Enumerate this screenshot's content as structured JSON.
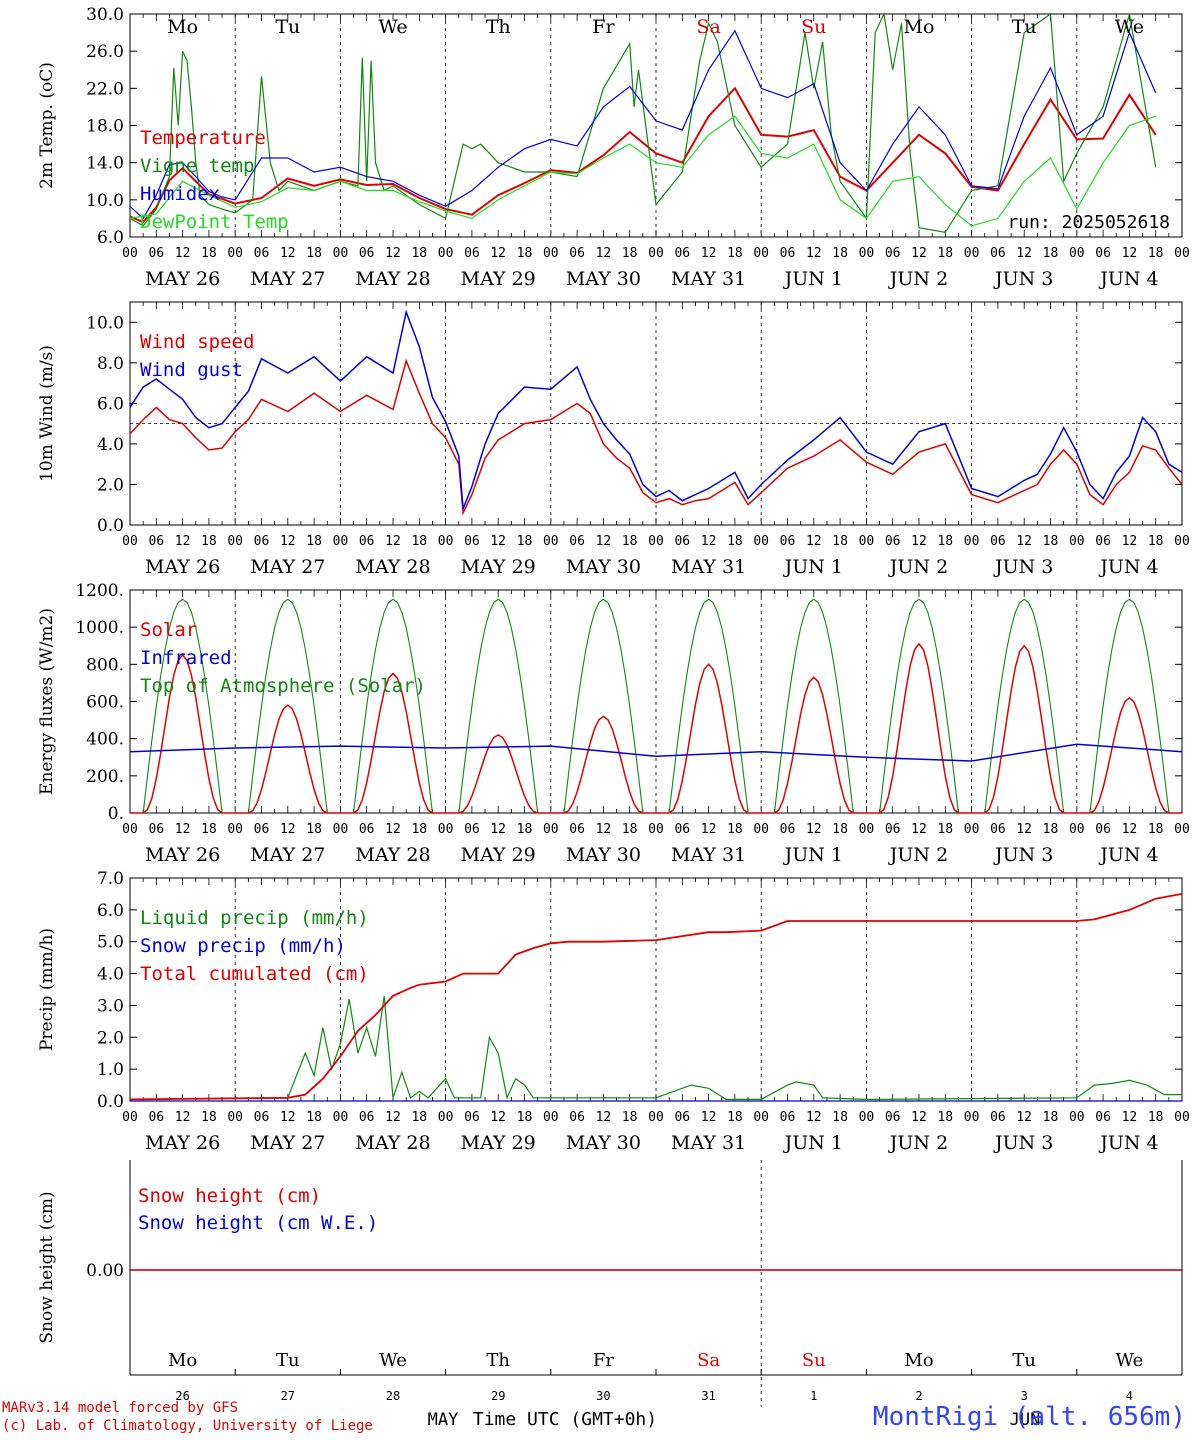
{
  "day_names": [
    "Mo",
    "Tu",
    "We",
    "Th",
    "Fr",
    "Sa",
    "Su",
    "Mo",
    "Tu",
    "We"
  ],
  "weekend_days": [
    "Sa",
    "Su"
  ],
  "date_labels": [
    "MAY 26",
    "MAY 27",
    "MAY 28",
    "MAY 29",
    "MAY 30",
    "MAY 31",
    "JUN  1",
    "JUN  2",
    "JUN  3",
    "JUN  4"
  ],
  "hour_ticks": [
    "00",
    "06",
    "12",
    "18"
  ],
  "day_numbers": [
    "26",
    "27",
    "28",
    "29",
    "30",
    "31",
    "1",
    "2",
    "3",
    "4"
  ],
  "month_labels": [
    "MAY",
    "JUN"
  ],
  "xlabel": "Time UTC (GMT+0h)",
  "run_label": "run: 2025052618",
  "footer": {
    "line1": "MARv3.14 model forced by GFS",
    "line2": "(c) Lab. of Climatology, University of Liege",
    "station": "MontRigi (alt. 656m)"
  },
  "colors": {
    "red": "#e00000",
    "green": "#118811",
    "light_green": "#22dd22",
    "blue": "#0000dd"
  },
  "chart_data": [
    {
      "type": "line",
      "ylabel": "2m Temp. (oC)",
      "ylim": [
        6,
        30
      ],
      "yticks": [
        "6.0",
        "10.0",
        "14.0",
        "18.0",
        "22.0",
        "26.0",
        "30.0"
      ],
      "x_unit": "hours since MAY 26 00 UTC",
      "series": [
        {
          "name": "Temperature",
          "color": "red",
          "x": [
            0,
            3,
            6,
            9,
            12,
            15,
            18,
            21,
            24,
            30,
            36,
            42,
            48,
            54,
            60,
            66,
            72,
            78,
            84,
            90,
            96,
            102,
            108,
            114,
            120,
            126,
            132,
            138,
            144,
            150,
            156,
            162,
            168,
            174,
            180,
            186,
            192,
            198,
            204,
            210,
            216,
            222,
            228,
            234
          ],
          "y": [
            8.2,
            7.6,
            9.2,
            12.1,
            13.4,
            12.0,
            10.6,
            10.1,
            9.6,
            10.2,
            12.3,
            11.5,
            12.2,
            11.6,
            11.7,
            10.2,
            9.0,
            8.4,
            10.5,
            11.8,
            13.2,
            12.9,
            14.8,
            17.3,
            15.0,
            14.0,
            19.0,
            22.0,
            17.0,
            16.8,
            17.5,
            12.5,
            11.0,
            14.0,
            17.0,
            15.0,
            11.4,
            11.0,
            16.0,
            20.8,
            16.5,
            16.6,
            21.3,
            17.0
          ]
        },
        {
          "name": "Vigne temp",
          "color": "green",
          "x": [
            0,
            3,
            6,
            9,
            10,
            11,
            12,
            13,
            14,
            15,
            16,
            18,
            21,
            24,
            28,
            30,
            32,
            34,
            36,
            42,
            48,
            52,
            53,
            54,
            55,
            56,
            58,
            60,
            66,
            72,
            76,
            78,
            80,
            84,
            90,
            96,
            102,
            108,
            114,
            115,
            116,
            120,
            126,
            130,
            132,
            134,
            138,
            144,
            150,
            154,
            156,
            158,
            160,
            162,
            168,
            170,
            172,
            174,
            176,
            178,
            180,
            186,
            192,
            198,
            204,
            210,
            213,
            216,
            222,
            228,
            234
          ],
          "y": [
            8.0,
            7.2,
            9.0,
            12.5,
            24.2,
            18.0,
            26.0,
            25.0,
            20.0,
            14.0,
            10.5,
            9.5,
            9.0,
            8.6,
            10.0,
            23.3,
            14.0,
            11.0,
            12.0,
            11.0,
            12.0,
            11.5,
            25.3,
            12.0,
            25.0,
            14.0,
            11.0,
            11.5,
            9.5,
            8.0,
            16.0,
            15.5,
            16.0,
            14.0,
            13.0,
            13.0,
            12.5,
            22.0,
            26.8,
            20.0,
            24.0,
            9.5,
            13.0,
            25.0,
            29.0,
            27.0,
            18.0,
            13.5,
            16.0,
            28.0,
            22.0,
            27.0,
            17.0,
            12.0,
            8.0,
            28.0,
            30.0,
            24.0,
            29.0,
            15.0,
            7.0,
            6.5,
            11.0,
            11.5,
            28.0,
            30.0,
            12.0,
            15.0,
            20.0,
            30.0,
            13.5
          ]
        },
        {
          "name": "Humidex",
          "color": "blue",
          "x": [
            0,
            3,
            6,
            9,
            12,
            15,
            18,
            21,
            24,
            30,
            36,
            42,
            48,
            54,
            60,
            66,
            72,
            78,
            84,
            90,
            96,
            102,
            108,
            114,
            120,
            126,
            132,
            138,
            144,
            150,
            156,
            162,
            168,
            174,
            180,
            186,
            192,
            198,
            204,
            210,
            216,
            222,
            228,
            234
          ],
          "y": [
            9.3,
            8.0,
            10.5,
            13.8,
            14.0,
            12.5,
            10.9,
            10.3,
            10.0,
            14.5,
            14.5,
            13.0,
            13.5,
            12.5,
            12.0,
            10.5,
            9.3,
            11.0,
            13.5,
            15.5,
            16.5,
            15.8,
            20.0,
            22.2,
            18.5,
            17.5,
            24.0,
            28.2,
            22.0,
            21.0,
            22.5,
            14.0,
            11.0,
            16.0,
            20.0,
            17.0,
            11.5,
            11.2,
            19.0,
            24.2,
            17.0,
            19.0,
            28.0,
            21.5
          ]
        },
        {
          "name": "DewPoint Temp",
          "color": "light_green",
          "x": [
            0,
            6,
            12,
            18,
            24,
            30,
            36,
            42,
            48,
            54,
            60,
            66,
            72,
            78,
            84,
            90,
            96,
            102,
            108,
            114,
            120,
            126,
            132,
            138,
            144,
            150,
            156,
            162,
            168,
            174,
            180,
            186,
            192,
            198,
            204,
            210,
            216,
            222,
            228,
            234
          ],
          "y": [
            8.0,
            8.5,
            12.0,
            10.5,
            9.2,
            9.8,
            11.3,
            11.0,
            12.0,
            11.0,
            11.0,
            9.8,
            8.8,
            8.0,
            10.0,
            11.5,
            13.0,
            12.8,
            14.5,
            16.0,
            14.0,
            13.5,
            17.0,
            19.0,
            15.0,
            14.5,
            16.0,
            10.0,
            8.0,
            12.0,
            12.5,
            9.5,
            7.2,
            8.0,
            12.0,
            14.5,
            9.0,
            14.0,
            18.0,
            19.0
          ]
        }
      ]
    },
    {
      "type": "line",
      "ylabel": "10m Wind (m/s)",
      "ylim": [
        0,
        11
      ],
      "yticks": [
        "0.0",
        "2.0",
        "4.0",
        "6.0",
        "8.0",
        "10.0"
      ],
      "reference_line": 5.0,
      "series": [
        {
          "name": "Wind speed",
          "color": "red",
          "x": [
            0,
            3,
            6,
            9,
            12,
            15,
            18,
            21,
            24,
            27,
            30,
            36,
            42,
            48,
            54,
            60,
            63,
            66,
            69,
            72,
            75,
            76,
            78,
            81,
            84,
            90,
            96,
            102,
            105,
            108,
            111,
            114,
            117,
            120,
            123,
            126,
            129,
            132,
            135,
            138,
            141,
            144,
            150,
            156,
            162,
            168,
            174,
            180,
            186,
            192,
            198,
            204,
            207,
            210,
            213,
            216,
            219,
            222,
            225,
            228,
            231,
            234,
            237,
            240
          ],
          "y": [
            4.5,
            5.2,
            5.8,
            5.2,
            5.0,
            4.3,
            3.7,
            3.8,
            4.6,
            5.2,
            6.2,
            5.6,
            6.5,
            5.6,
            6.4,
            5.7,
            8.1,
            6.5,
            5.0,
            4.3,
            3.0,
            0.6,
            1.5,
            3.3,
            4.2,
            5.0,
            5.2,
            6.0,
            5.5,
            4.0,
            3.3,
            2.8,
            1.6,
            1.1,
            1.3,
            1.0,
            1.2,
            1.3,
            1.7,
            2.1,
            1.0,
            1.6,
            2.8,
            3.4,
            4.2,
            3.1,
            2.5,
            3.6,
            4.0,
            1.5,
            1.1,
            1.7,
            2.0,
            3.0,
            3.7,
            3.0,
            1.5,
            1.0,
            2.0,
            2.6,
            3.9,
            3.7,
            2.8,
            2.0
          ]
        },
        {
          "name": "Wind gust",
          "color": "blue",
          "x": [
            0,
            3,
            6,
            9,
            12,
            15,
            18,
            21,
            24,
            27,
            30,
            36,
            42,
            48,
            54,
            60,
            63,
            66,
            69,
            72,
            75,
            76,
            78,
            81,
            84,
            90,
            96,
            102,
            105,
            108,
            111,
            114,
            117,
            120,
            123,
            126,
            129,
            132,
            135,
            138,
            141,
            144,
            150,
            156,
            162,
            168,
            174,
            180,
            186,
            192,
            198,
            204,
            207,
            210,
            213,
            216,
            219,
            222,
            225,
            228,
            231,
            234,
            237,
            240
          ],
          "y": [
            5.8,
            6.8,
            7.2,
            6.7,
            6.2,
            5.3,
            4.8,
            5.0,
            5.8,
            6.6,
            8.2,
            7.5,
            8.3,
            7.1,
            8.3,
            7.5,
            10.5,
            8.8,
            6.3,
            5.1,
            3.4,
            0.8,
            1.9,
            4.0,
            5.5,
            6.8,
            6.7,
            7.8,
            6.2,
            5.0,
            4.2,
            3.5,
            2.0,
            1.4,
            1.7,
            1.2,
            1.5,
            1.8,
            2.2,
            2.6,
            1.3,
            2.0,
            3.2,
            4.2,
            5.3,
            3.6,
            3.0,
            4.6,
            5.0,
            1.8,
            1.4,
            2.2,
            2.5,
            3.5,
            4.8,
            3.6,
            2.0,
            1.3,
            2.6,
            3.4,
            5.3,
            4.6,
            3.0,
            2.6
          ]
        }
      ]
    },
    {
      "type": "line",
      "ylabel": "Energy fluxes (W/m2)",
      "ylim": [
        0,
        1200
      ],
      "yticks": [
        "0.",
        "200.",
        "400.",
        "600.",
        "800.",
        "1000.",
        "1200."
      ],
      "series": [
        {
          "name": "Solar",
          "color": "red",
          "day_peaks": [
            850,
            580,
            750,
            420,
            520,
            800,
            730,
            910,
            900,
            620
          ]
        },
        {
          "name": "Infrared",
          "color": "blue",
          "x": [
            0,
            24,
            48,
            72,
            96,
            120,
            144,
            168,
            192,
            216,
            240
          ],
          "y": [
            330,
            350,
            360,
            350,
            360,
            305,
            330,
            300,
            280,
            370,
            330
          ]
        },
        {
          "name": "Top of Atmosphere (Solar)",
          "color": "green",
          "day_peaks": [
            1150,
            1150,
            1150,
            1150,
            1150,
            1150,
            1150,
            1150,
            1150,
            1150
          ]
        }
      ]
    },
    {
      "type": "line",
      "ylabel": "Precip (mm/h)",
      "ylim": [
        0,
        7
      ],
      "yticks": [
        "0.0",
        "1.0",
        "2.0",
        "3.0",
        "4.0",
        "5.0",
        "6.0",
        "7.0"
      ],
      "series": [
        {
          "name": "Liquid precip (mm/h)",
          "color": "green",
          "x": [
            0,
            36,
            40,
            42,
            44,
            46,
            48,
            50,
            52,
            54,
            56,
            58,
            60,
            62,
            64,
            66,
            68,
            72,
            74,
            76,
            78,
            80,
            82,
            84,
            86,
            88,
            90,
            92,
            94,
            96,
            120,
            128,
            132,
            136,
            144,
            150,
            152,
            156,
            158,
            168,
            216,
            220,
            224,
            228,
            232,
            236,
            240
          ],
          "y": [
            0.05,
            0.1,
            1.5,
            0.8,
            2.3,
            1.0,
            1.8,
            3.2,
            1.5,
            2.3,
            1.4,
            3.3,
            0.1,
            0.9,
            0.1,
            0.3,
            0.1,
            0.7,
            0.1,
            0.1,
            0.1,
            0.1,
            2.0,
            1.5,
            0.1,
            0.7,
            0.5,
            0.1,
            0.1,
            0.1,
            0.1,
            0.5,
            0.4,
            0.05,
            0.05,
            0.5,
            0.6,
            0.5,
            0.1,
            0.05,
            0.1,
            0.5,
            0.55,
            0.65,
            0.5,
            0.2,
            0.2
          ]
        },
        {
          "name": "Snow precip (mm/h)",
          "color": "blue",
          "x": [
            0,
            240
          ],
          "y": [
            0,
            0
          ]
        },
        {
          "name": "Total cumulated (cm)",
          "color": "red",
          "x": [
            0,
            36,
            40,
            44,
            48,
            52,
            56,
            60,
            64,
            66,
            72,
            76,
            84,
            88,
            92,
            96,
            100,
            108,
            120,
            132,
            136,
            144,
            150,
            156,
            216,
            220,
            228,
            234,
            240
          ],
          "y": [
            0.05,
            0.1,
            0.2,
            0.7,
            1.4,
            2.2,
            2.7,
            3.3,
            3.55,
            3.65,
            3.75,
            4.0,
            4.0,
            4.6,
            4.8,
            4.95,
            5.0,
            5.0,
            5.05,
            5.3,
            5.3,
            5.35,
            5.65,
            5.65,
            5.65,
            5.7,
            6.0,
            6.35,
            6.5
          ]
        }
      ]
    },
    {
      "type": "line",
      "ylabel": "Snow height (cm)",
      "yticks": [
        "0.00"
      ],
      "series": [
        {
          "name": "Snow height (cm)",
          "color": "red",
          "x": [
            0,
            240
          ],
          "y": [
            0,
            0
          ]
        },
        {
          "name": "Snow height (cm W.E.)",
          "color": "blue",
          "x": [
            0,
            240
          ],
          "y": [
            0,
            0
          ]
        }
      ]
    }
  ]
}
